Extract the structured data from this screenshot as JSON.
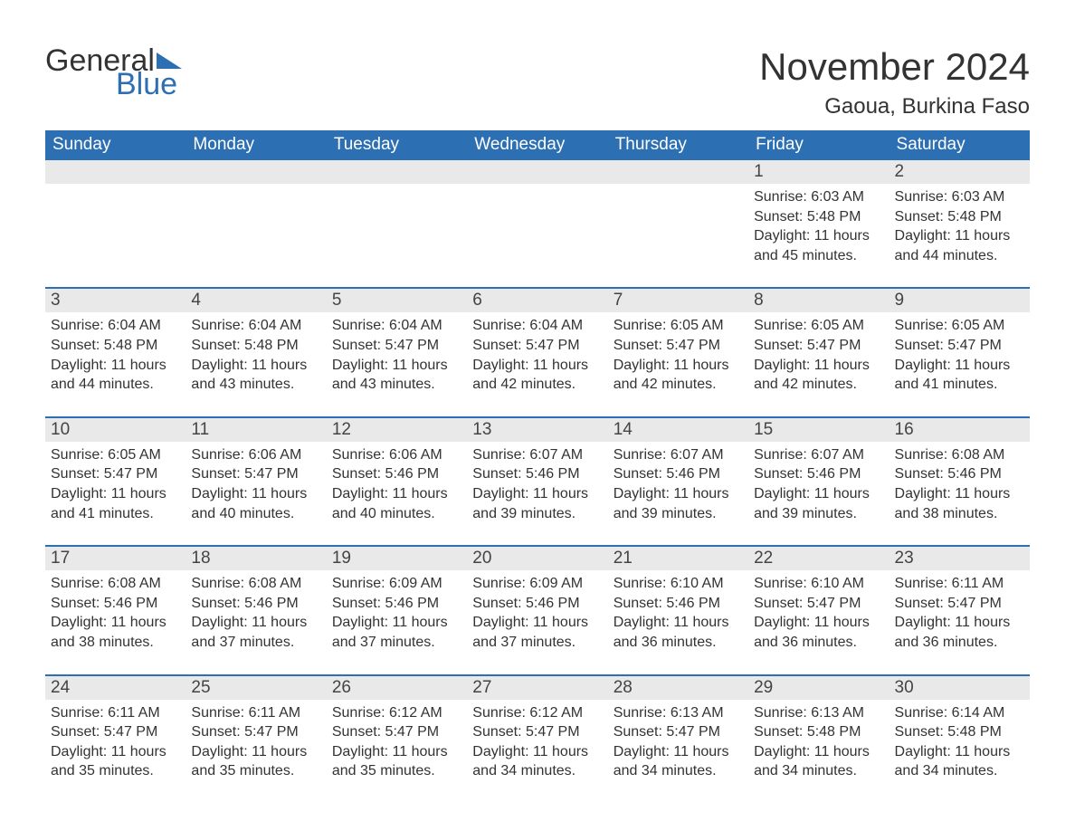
{
  "brand": {
    "part1": "General",
    "part2": "Blue",
    "accent": "#2d6fb3"
  },
  "title": "November 2024",
  "location": "Gaoua, Burkina Faso",
  "colors": {
    "header_bg": "#2d6fb3",
    "header_text": "#ffffff",
    "daynum_bg": "#e9e9e9",
    "week_rule": "#2d6fb3",
    "body_text": "#333333",
    "page_bg": "#ffffff"
  },
  "fonts": {
    "title_size_pt": 32,
    "location_size_pt": 18,
    "weekday_size_pt": 14,
    "daynum_size_pt": 14,
    "body_size_pt": 12
  },
  "weekdays": [
    "Sunday",
    "Monday",
    "Tuesday",
    "Wednesday",
    "Thursday",
    "Friday",
    "Saturday"
  ],
  "weeks": [
    [
      null,
      null,
      null,
      null,
      null,
      {
        "n": "1",
        "sunrise": "6:03 AM",
        "sunset": "5:48 PM",
        "daylight": "11 hours and 45 minutes."
      },
      {
        "n": "2",
        "sunrise": "6:03 AM",
        "sunset": "5:48 PM",
        "daylight": "11 hours and 44 minutes."
      }
    ],
    [
      {
        "n": "3",
        "sunrise": "6:04 AM",
        "sunset": "5:48 PM",
        "daylight": "11 hours and 44 minutes."
      },
      {
        "n": "4",
        "sunrise": "6:04 AM",
        "sunset": "5:48 PM",
        "daylight": "11 hours and 43 minutes."
      },
      {
        "n": "5",
        "sunrise": "6:04 AM",
        "sunset": "5:47 PM",
        "daylight": "11 hours and 43 minutes."
      },
      {
        "n": "6",
        "sunrise": "6:04 AM",
        "sunset": "5:47 PM",
        "daylight": "11 hours and 42 minutes."
      },
      {
        "n": "7",
        "sunrise": "6:05 AM",
        "sunset": "5:47 PM",
        "daylight": "11 hours and 42 minutes."
      },
      {
        "n": "8",
        "sunrise": "6:05 AM",
        "sunset": "5:47 PM",
        "daylight": "11 hours and 42 minutes."
      },
      {
        "n": "9",
        "sunrise": "6:05 AM",
        "sunset": "5:47 PM",
        "daylight": "11 hours and 41 minutes."
      }
    ],
    [
      {
        "n": "10",
        "sunrise": "6:05 AM",
        "sunset": "5:47 PM",
        "daylight": "11 hours and 41 minutes."
      },
      {
        "n": "11",
        "sunrise": "6:06 AM",
        "sunset": "5:47 PM",
        "daylight": "11 hours and 40 minutes."
      },
      {
        "n": "12",
        "sunrise": "6:06 AM",
        "sunset": "5:46 PM",
        "daylight": "11 hours and 40 minutes."
      },
      {
        "n": "13",
        "sunrise": "6:07 AM",
        "sunset": "5:46 PM",
        "daylight": "11 hours and 39 minutes."
      },
      {
        "n": "14",
        "sunrise": "6:07 AM",
        "sunset": "5:46 PM",
        "daylight": "11 hours and 39 minutes."
      },
      {
        "n": "15",
        "sunrise": "6:07 AM",
        "sunset": "5:46 PM",
        "daylight": "11 hours and 39 minutes."
      },
      {
        "n": "16",
        "sunrise": "6:08 AM",
        "sunset": "5:46 PM",
        "daylight": "11 hours and 38 minutes."
      }
    ],
    [
      {
        "n": "17",
        "sunrise": "6:08 AM",
        "sunset": "5:46 PM",
        "daylight": "11 hours and 38 minutes."
      },
      {
        "n": "18",
        "sunrise": "6:08 AM",
        "sunset": "5:46 PM",
        "daylight": "11 hours and 37 minutes."
      },
      {
        "n": "19",
        "sunrise": "6:09 AM",
        "sunset": "5:46 PM",
        "daylight": "11 hours and 37 minutes."
      },
      {
        "n": "20",
        "sunrise": "6:09 AM",
        "sunset": "5:46 PM",
        "daylight": "11 hours and 37 minutes."
      },
      {
        "n": "21",
        "sunrise": "6:10 AM",
        "sunset": "5:46 PM",
        "daylight": "11 hours and 36 minutes."
      },
      {
        "n": "22",
        "sunrise": "6:10 AM",
        "sunset": "5:47 PM",
        "daylight": "11 hours and 36 minutes."
      },
      {
        "n": "23",
        "sunrise": "6:11 AM",
        "sunset": "5:47 PM",
        "daylight": "11 hours and 36 minutes."
      }
    ],
    [
      {
        "n": "24",
        "sunrise": "6:11 AM",
        "sunset": "5:47 PM",
        "daylight": "11 hours and 35 minutes."
      },
      {
        "n": "25",
        "sunrise": "6:11 AM",
        "sunset": "5:47 PM",
        "daylight": "11 hours and 35 minutes."
      },
      {
        "n": "26",
        "sunrise": "6:12 AM",
        "sunset": "5:47 PM",
        "daylight": "11 hours and 35 minutes."
      },
      {
        "n": "27",
        "sunrise": "6:12 AM",
        "sunset": "5:47 PM",
        "daylight": "11 hours and 34 minutes."
      },
      {
        "n": "28",
        "sunrise": "6:13 AM",
        "sunset": "5:47 PM",
        "daylight": "11 hours and 34 minutes."
      },
      {
        "n": "29",
        "sunrise": "6:13 AM",
        "sunset": "5:48 PM",
        "daylight": "11 hours and 34 minutes."
      },
      {
        "n": "30",
        "sunrise": "6:14 AM",
        "sunset": "5:48 PM",
        "daylight": "11 hours and 34 minutes."
      }
    ]
  ],
  "labels": {
    "sunrise": "Sunrise:",
    "sunset": "Sunset:",
    "daylight": "Daylight:"
  }
}
